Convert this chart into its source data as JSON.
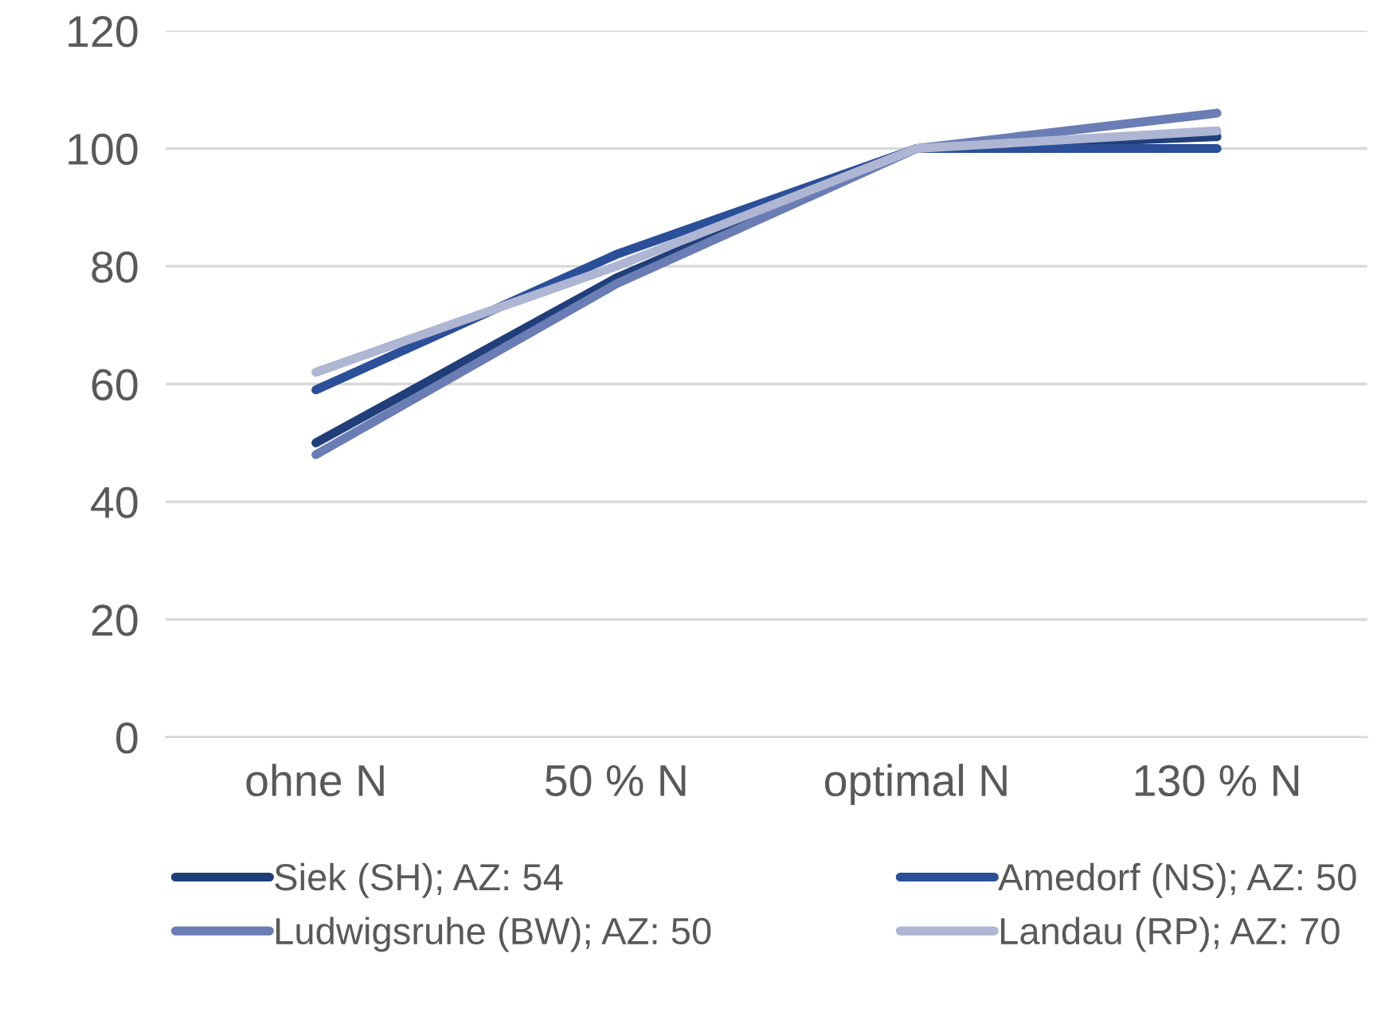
{
  "chart_data": {
    "type": "line",
    "categories": [
      "ohne N",
      "50 % N",
      "optimal N",
      "130 % N"
    ],
    "series": [
      {
        "name": "Siek (SH); AZ: 54",
        "color": "#203f7a",
        "values": [
          50,
          78,
          100,
          102
        ]
      },
      {
        "name": "Amedorf (NS); AZ: 50",
        "color": "#2b4f98",
        "values": [
          59,
          82,
          100,
          100
        ]
      },
      {
        "name": "Ludwigsruhe (BW); AZ: 50",
        "color": "#6a7db4",
        "values": [
          48,
          77,
          100,
          106
        ]
      },
      {
        "name": "Landau (RP); AZ: 70",
        "color": "#aeb6d3",
        "values": [
          62,
          80,
          100,
          103
        ]
      }
    ],
    "ylim": [
      0,
      120
    ],
    "yticks": [
      0,
      20,
      40,
      60,
      80,
      100,
      120
    ],
    "grid": "y",
    "legend": "bottom",
    "marker": "none",
    "line_style": "solid"
  }
}
